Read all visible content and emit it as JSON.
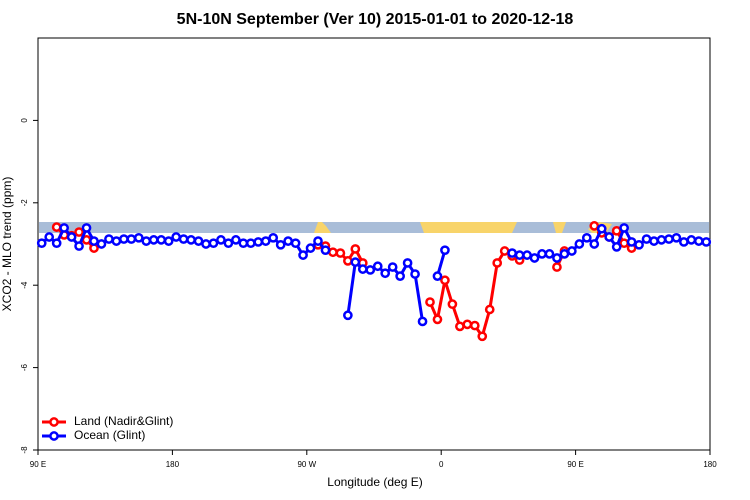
{
  "chart_data": {
    "type": "line",
    "title": "5N-10N September (Ver 10)   2015-01-01 to 2020-12-18",
    "x_label": "Longitude (deg E)",
    "y_label": "XCO2 - MLO trend (ppm)",
    "x": [
      -267.5,
      -262.5,
      -257.5,
      -252.5,
      -247.5,
      -242.5,
      -237.5,
      -232.5,
      -227.5,
      -222.5,
      -217.5,
      -212.5,
      -207.5,
      -202.5,
      -197.5,
      -192.5,
      -187.5,
      -182.5,
      -177.5,
      -172.5,
      -167.5,
      -162.5,
      -157.5,
      -152.5,
      -147.5,
      -142.5,
      -137.5,
      -132.5,
      -127.5,
      -122.5,
      -117.5,
      -112.5,
      -107.5,
      -102.5,
      -97.5,
      -92.5,
      -87.5,
      -82.5,
      -77.5,
      -72.5,
      -67.5,
      -62.5,
      -57.5,
      -52.5,
      -47.5,
      -42.5,
      -37.5,
      -32.5,
      -27.5,
      -22.5,
      -17.5,
      -12.5,
      -7.5,
      -2.5,
      2.5,
      7.5,
      12.5,
      17.5,
      22.5,
      27.5,
      32.5,
      37.5,
      42.5,
      47.5,
      52.5,
      57.5,
      62.5,
      67.5,
      72.5,
      77.5,
      82.5,
      87.5,
      92.5,
      97.5,
      102.5,
      107.5,
      112.5,
      117.5,
      122.5,
      127.5,
      132.5,
      137.5,
      142.5,
      147.5,
      152.5,
      157.5,
      162.5,
      167.5,
      172.5,
      177.5
    ],
    "series": [
      {
        "name": "Land (Nadir&Glint)",
        "color": "#ff0000",
        "values": [
          null,
          null,
          -2.59,
          -2.78,
          -2.8,
          -2.71,
          -2.9,
          -3.1,
          null,
          null,
          null,
          null,
          null,
          null,
          null,
          null,
          null,
          null,
          null,
          null,
          null,
          null,
          null,
          null,
          null,
          null,
          null,
          null,
          null,
          null,
          null,
          null,
          null,
          null,
          null,
          null,
          null,
          -3.02,
          -3.05,
          -3.2,
          -3.22,
          -3.41,
          -3.12,
          -3.46,
          null,
          null,
          null,
          null,
          null,
          null,
          null,
          null,
          -4.41,
          -4.83,
          -3.88,
          -4.46,
          -5.0,
          -4.95,
          -4.98,
          -5.24,
          -4.59,
          -3.46,
          -3.17,
          -3.29,
          -3.39,
          null,
          null,
          null,
          null,
          -3.56,
          -3.17,
          null,
          null,
          null,
          -2.56,
          -2.73,
          -2.83,
          -2.68,
          -2.98,
          -3.1,
          null,
          null,
          null,
          null,
          null,
          null,
          null,
          null,
          null,
          null
        ]
      },
      {
        "name": "Ocean (Glint)",
        "color": "#0000ff",
        "values": [
          -2.98,
          -2.83,
          -2.98,
          -2.61,
          -2.83,
          -3.05,
          -2.61,
          -2.93,
          -3.0,
          -2.88,
          -2.93,
          -2.88,
          -2.88,
          -2.85,
          -2.93,
          -2.9,
          -2.9,
          -2.93,
          -2.83,
          -2.88,
          -2.9,
          -2.93,
          -3.0,
          -2.98,
          -2.9,
          -2.98,
          -2.9,
          -2.98,
          -2.98,
          -2.95,
          -2.93,
          -2.85,
          -3.02,
          -2.93,
          -2.98,
          -3.27,
          -3.1,
          -2.93,
          -3.15,
          null,
          null,
          -4.73,
          -3.44,
          -3.61,
          -3.63,
          -3.54,
          -3.71,
          -3.56,
          -3.78,
          -3.46,
          -3.73,
          -4.88,
          null,
          -3.78,
          -3.15,
          null,
          null,
          null,
          null,
          null,
          null,
          null,
          null,
          -3.22,
          -3.27,
          -3.27,
          -3.34,
          -3.24,
          -3.24,
          -3.34,
          -3.24,
          -3.17,
          -3.0,
          -2.85,
          -3.0,
          -2.63,
          -2.83,
          -3.07,
          -2.61,
          -2.95,
          -3.02,
          -2.88,
          -2.93,
          -2.9,
          -2.88,
          -2.85,
          -2.95,
          -2.9,
          -2.93,
          -2.95
        ]
      }
    ],
    "xlim": [
      -270,
      180
    ],
    "xticks": [
      {
        "value": -270,
        "label": "90 E"
      },
      {
        "value": -180,
        "label": "180"
      },
      {
        "value": -90,
        "label": "90 W"
      },
      0,
      {
        "value": 90,
        "label": "90 E"
      },
      180
    ],
    "ylim": [
      -8,
      2
    ],
    "yticks": [
      0,
      -2,
      -4,
      -6,
      -8
    ],
    "grid": false,
    "legend": "bottomleft"
  }
}
